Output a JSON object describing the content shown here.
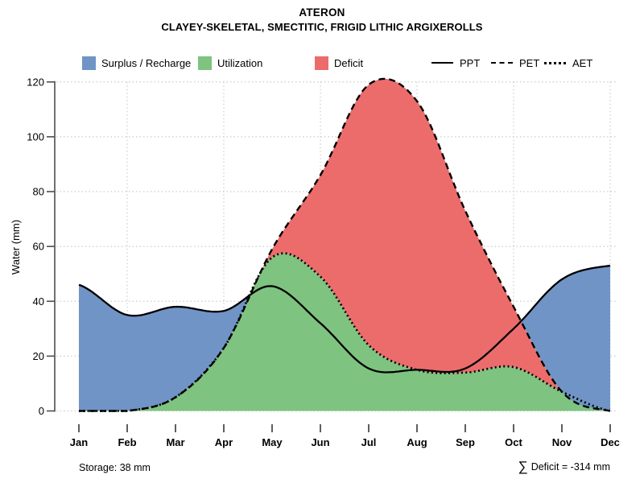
{
  "header": {
    "title": "ATERON",
    "subtitle": "CLAYEY-SKELETAL, SMECTITIC, FRIGID LITHIC ARGIXEROLLS"
  },
  "legend": {
    "areas": [
      {
        "label": "Surplus / Recharge",
        "color": "#7094c6"
      },
      {
        "label": "Utilization",
        "color": "#7ec380"
      },
      {
        "label": "Deficit",
        "color": "#ec6c6c"
      }
    ],
    "lines": [
      {
        "label": "PPT",
        "style": "solid"
      },
      {
        "label": "PET",
        "style": "dashed"
      },
      {
        "label": "AET",
        "style": "dotted"
      }
    ]
  },
  "footer": {
    "storage": "Storage: 38 mm",
    "sum_symbol": "∑",
    "deficit": "Deficit = -314 mm"
  },
  "chart_data": {
    "type": "area",
    "title": "ATERON",
    "subtitle": "CLAYEY-SKELETAL, SMECTITIC, FRIGID LITHIC ARGIXEROLLS",
    "categories": [
      "Jan",
      "Feb",
      "Mar",
      "Apr",
      "May",
      "Jun",
      "Jul",
      "Aug",
      "Sep",
      "Oct",
      "Nov",
      "Dec"
    ],
    "series": [
      {
        "name": "PPT",
        "style": "solid",
        "values": [
          46,
          35,
          38,
          36.5,
          45.5,
          32,
          15.5,
          15,
          15.5,
          30,
          48,
          53
        ]
      },
      {
        "name": "PET",
        "style": "dashed",
        "values": [
          0,
          0,
          5,
          23,
          59,
          86,
          119,
          113,
          73,
          38,
          7,
          0
        ]
      },
      {
        "name": "AET",
        "style": "dotted",
        "values": [
          0,
          0,
          5,
          23,
          56,
          49,
          24,
          15,
          14,
          16,
          7,
          0
        ]
      }
    ],
    "areas": [
      {
        "name": "utilization",
        "label": "Utilization",
        "between": [
          "zero",
          "AET"
        ]
      },
      {
        "name": "deficit",
        "label": "Deficit",
        "between": [
          "AET",
          "PET"
        ]
      },
      {
        "name": "surplus",
        "label": "Surplus / Recharge",
        "between": [
          "PET",
          "PPT"
        ]
      }
    ],
    "ylabel": "Water (mm)",
    "ylim": [
      0,
      120
    ],
    "yticks": [
      0,
      20,
      40,
      60,
      80,
      100,
      120
    ],
    "grid": true,
    "legend_position": "top",
    "annotations": {
      "storage_mm": 38,
      "sum_deficit_mm": -314
    }
  }
}
